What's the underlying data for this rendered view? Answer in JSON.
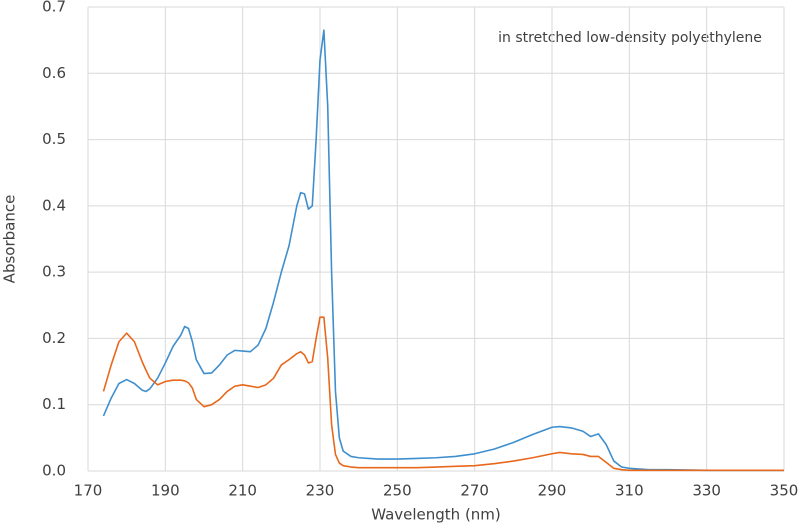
{
  "chart_data": {
    "type": "line",
    "annotation": "in stretched low-density polyethylene",
    "xlabel": "Wavelength (nm)",
    "ylabel": "Absorbance",
    "x": [
      174,
      176,
      178,
      180,
      182,
      184,
      185,
      186,
      188,
      190,
      192,
      194,
      195,
      196,
      197,
      198,
      200,
      202,
      204,
      206,
      208,
      210,
      212,
      214,
      216,
      218,
      220,
      222,
      224,
      225,
      226,
      227,
      228,
      229,
      230,
      231,
      232,
      233,
      234,
      235,
      236,
      238,
      240,
      245,
      250,
      255,
      260,
      265,
      270,
      275,
      280,
      285,
      290,
      292,
      295,
      298,
      300,
      302,
      304,
      306,
      308,
      310,
      315,
      320,
      330,
      340,
      350
    ],
    "series": [
      {
        "color": "#3f8fce",
        "values": [
          0.083,
          0.11,
          0.132,
          0.138,
          0.132,
          0.122,
          0.12,
          0.124,
          0.14,
          0.163,
          0.188,
          0.205,
          0.218,
          0.215,
          0.195,
          0.168,
          0.147,
          0.148,
          0.16,
          0.175,
          0.182,
          0.181,
          0.18,
          0.19,
          0.215,
          0.255,
          0.3,
          0.34,
          0.4,
          0.42,
          0.418,
          0.395,
          0.4,
          0.5,
          0.62,
          0.665,
          0.55,
          0.3,
          0.12,
          0.05,
          0.03,
          0.022,
          0.02,
          0.018,
          0.018,
          0.019,
          0.02,
          0.022,
          0.026,
          0.033,
          0.043,
          0.055,
          0.066,
          0.067,
          0.065,
          0.06,
          0.052,
          0.056,
          0.04,
          0.015,
          0.006,
          0.004,
          0.002,
          0.002,
          0.001,
          0.001,
          0.001
        ]
      },
      {
        "color": "#e8681c",
        "values": [
          0.12,
          0.16,
          0.195,
          0.208,
          0.195,
          0.165,
          0.152,
          0.14,
          0.13,
          0.135,
          0.137,
          0.137,
          0.136,
          0.133,
          0.125,
          0.108,
          0.097,
          0.1,
          0.108,
          0.12,
          0.128,
          0.13,
          0.128,
          0.126,
          0.13,
          0.14,
          0.16,
          0.168,
          0.177,
          0.18,
          0.175,
          0.163,
          0.165,
          0.2,
          0.232,
          0.232,
          0.17,
          0.07,
          0.025,
          0.012,
          0.008,
          0.006,
          0.005,
          0.005,
          0.005,
          0.005,
          0.006,
          0.007,
          0.008,
          0.011,
          0.015,
          0.02,
          0.026,
          0.028,
          0.026,
          0.025,
          0.022,
          0.022,
          0.013,
          0.004,
          0.002,
          0.001,
          0.001,
          0.001,
          0.001,
          0.001,
          0.001
        ]
      }
    ],
    "xlim": [
      170,
      350
    ],
    "xticks": [
      170,
      190,
      210,
      230,
      250,
      270,
      290,
      310,
      330,
      350
    ],
    "ylim": [
      0,
      0.7
    ],
    "yticks": [
      {
        "value": 0,
        "label": "0.0"
      },
      0.1,
      0.2,
      0.3,
      0.4,
      0.5,
      0.6,
      0.7
    ],
    "grid": true
  }
}
